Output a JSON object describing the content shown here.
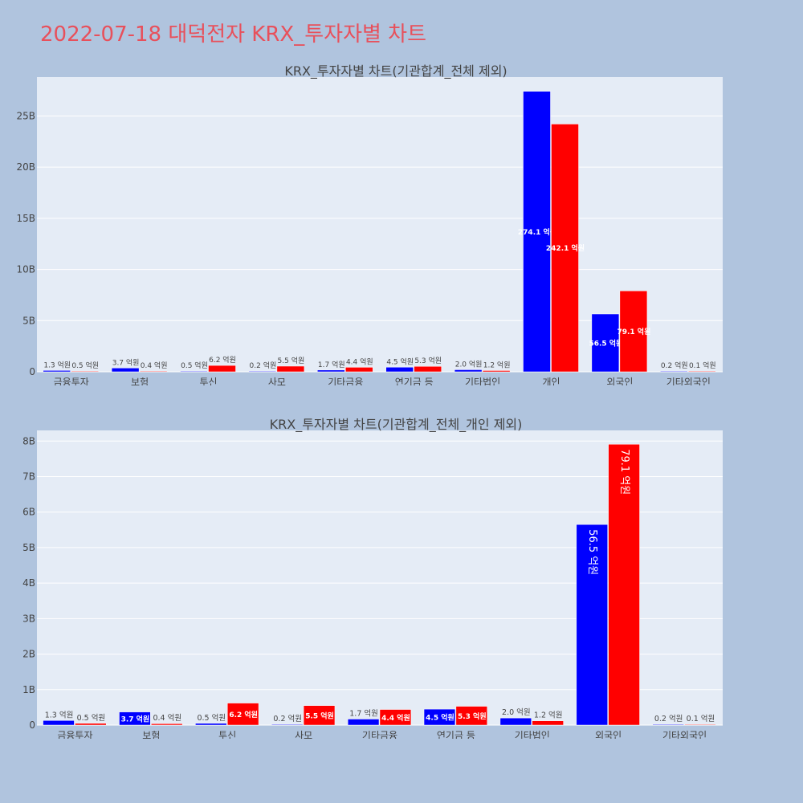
{
  "page": {
    "title": "2022-07-18 대덕전자 KRX_투자자별 차트"
  },
  "colors": {
    "buy": "#0000ff",
    "sell": "#ff0000",
    "plot_bg": "#e5ecf6",
    "page_bg": "#b0c4de",
    "title": "#e8505b"
  },
  "chart_data": [
    {
      "type": "bar",
      "title": "KRX_투자자별 차트(기관합계_전체 제외)",
      "categories": [
        "금융투자",
        "보험",
        "투신",
        "사모",
        "기타금융",
        "연기금 등",
        "기타법인",
        "개인",
        "외국인",
        "기타외국인"
      ],
      "series": [
        {
          "color": "#0000ff",
          "values": [
            130000000,
            370000000,
            50000000,
            20000000,
            170000000,
            450000000,
            200000000,
            27410000000,
            5650000000,
            20000000
          ],
          "labels": [
            "1.3 억원",
            "3.7 억원",
            "0.5 억원",
            "0.2 억원",
            "1.7 억원",
            "4.5 억원",
            "2.0 억원",
            "274.1 억원",
            "56.5 억원",
            "0.2 억원"
          ]
        },
        {
          "color": "#ff0000",
          "values": [
            50000000,
            40000000,
            620000000,
            550000000,
            440000000,
            530000000,
            120000000,
            24210000000,
            7910000000,
            10000000
          ],
          "labels": [
            "0.5 억원",
            "0.4 억원",
            "6.2 억원",
            "5.5 억원",
            "4.4 억원",
            "5.3 억원",
            "1.2 억원",
            "242.1 억원",
            "79.1 억원",
            "0.1 억원"
          ]
        }
      ],
      "yticks": [
        0,
        5000000000,
        10000000000,
        15000000000,
        20000000000,
        25000000000
      ],
      "ytick_labels": [
        "0",
        "5B",
        "10B",
        "15B",
        "20B",
        "25B"
      ],
      "ylim": [
        0,
        28800000000
      ]
    },
    {
      "type": "bar",
      "title": "KRX_투자자별 차트(기관합계_전체_개인 제외)",
      "categories": [
        "금융투자",
        "보험",
        "투신",
        "사모",
        "기타금융",
        "연기금 등",
        "기타법인",
        "외국인",
        "기타외국인"
      ],
      "series": [
        {
          "color": "#0000ff",
          "values": [
            130000000,
            370000000,
            50000000,
            20000000,
            170000000,
            450000000,
            200000000,
            5650000000,
            20000000
          ],
          "labels": [
            "1.3 억원",
            "3.7 억원",
            "0.5 억원",
            "0.2 억원",
            "1.7 억원",
            "4.5 억원",
            "2.0 억원",
            "56.5 억원",
            "0.2 억원"
          ]
        },
        {
          "color": "#ff0000",
          "values": [
            50000000,
            40000000,
            620000000,
            550000000,
            440000000,
            530000000,
            120000000,
            7910000000,
            10000000
          ],
          "labels": [
            "0.5 억원",
            "0.4 억원",
            "6.2 억원",
            "5.5 억원",
            "4.4 억원",
            "5.3 억원",
            "1.2 억원",
            "79.1 억원",
            "0.1 억원"
          ]
        }
      ],
      "yticks": [
        0,
        1000000000,
        2000000000,
        3000000000,
        4000000000,
        5000000000,
        6000000000,
        7000000000,
        8000000000
      ],
      "ytick_labels": [
        "0",
        "1B",
        "2B",
        "3B",
        "4B",
        "5B",
        "6B",
        "7B",
        "8B"
      ],
      "ylim": [
        0,
        8300000000
      ]
    }
  ]
}
